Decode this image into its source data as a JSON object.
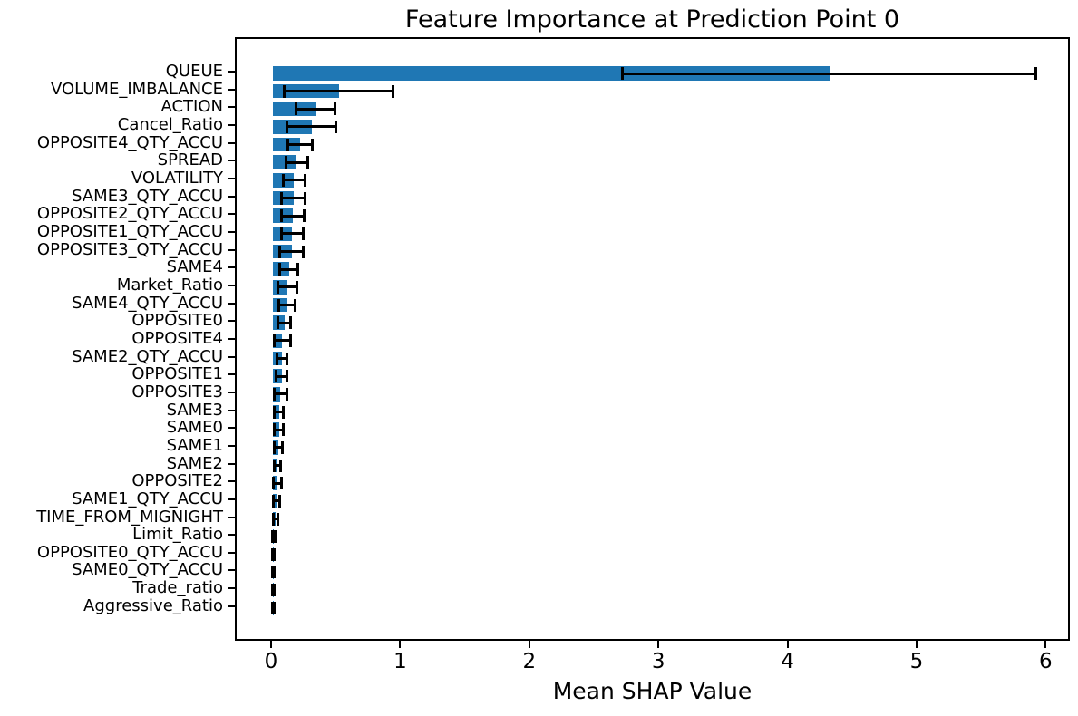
{
  "chart_data": {
    "type": "bar",
    "orientation": "horizontal",
    "title": "Feature Importance at Prediction Point 0",
    "xlabel": "Mean SHAP Value",
    "ylabel": "",
    "legend": null,
    "grid": false,
    "x_ticks": [
      0,
      1,
      2,
      3,
      4,
      5,
      6
    ],
    "xlim": [
      -0.281,
      6.187
    ],
    "bar_color": "#1f77b4",
    "error_color": "#000000",
    "categories": [
      "QUEUE",
      "VOLUME_IMBALANCE",
      "ACTION",
      "Cancel_Ratio",
      "OPPOSITE4_QTY_ACCU",
      "SPREAD",
      "VOLATILITY",
      "SAME3_QTY_ACCU",
      "OPPOSITE2_QTY_ACCU",
      "OPPOSITE1_QTY_ACCU",
      "OPPOSITE3_QTY_ACCU",
      "SAME4",
      "Market_Ratio",
      "SAME4_QTY_ACCU",
      "OPPOSITE0",
      "OPPOSITE4",
      "SAME2_QTY_ACCU",
      "OPPOSITE1",
      "OPPOSITE3",
      "SAME3",
      "SAME0",
      "SAME1",
      "SAME2",
      "OPPOSITE2",
      "SAME1_QTY_ACCU",
      "TIME_FROM_MIGNIGHT",
      "Limit_Ratio",
      "OPPOSITE0_QTY_ACCU",
      "SAME0_QTY_ACCU",
      "Trade_ratio",
      "Aggressive_Ratio"
    ],
    "values": [
      4.31,
      0.51,
      0.33,
      0.3,
      0.21,
      0.185,
      0.165,
      0.16,
      0.155,
      0.15,
      0.145,
      0.125,
      0.112,
      0.11,
      0.088,
      0.073,
      0.071,
      0.068,
      0.057,
      0.048,
      0.046,
      0.041,
      0.036,
      0.034,
      0.028,
      0.021,
      0.006,
      0.005,
      0.005,
      0.004,
      0.004
    ],
    "errors": [
      1.6,
      0.42,
      0.15,
      0.19,
      0.095,
      0.085,
      0.085,
      0.09,
      0.088,
      0.085,
      0.09,
      0.07,
      0.075,
      0.062,
      0.05,
      0.065,
      0.04,
      0.04,
      0.05,
      0.035,
      0.034,
      0.032,
      0.027,
      0.03,
      0.024,
      0.019,
      0.008,
      0.007,
      0.006,
      0.006,
      0.005
    ]
  }
}
